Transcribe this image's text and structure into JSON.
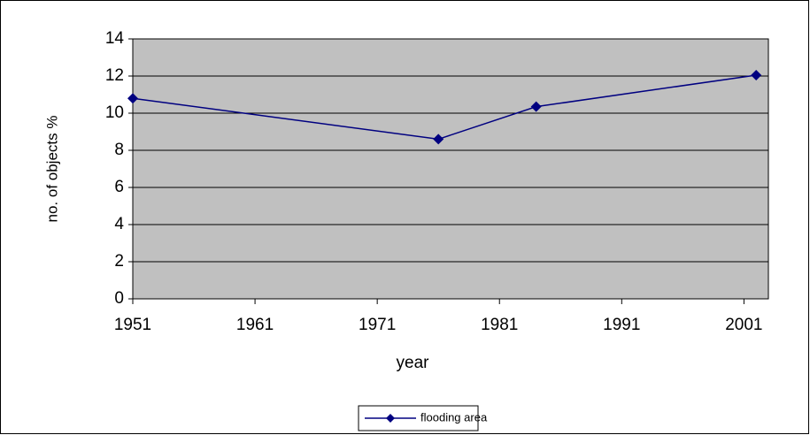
{
  "chart_data": {
    "type": "line",
    "x_label": "year",
    "y_label": "no. of objects %",
    "series": [
      {
        "name": "flooding area",
        "color": "#000080",
        "x": [
          1951,
          1976,
          1984,
          2002
        ],
        "values": [
          10.8,
          8.6,
          10.35,
          12.05
        ]
      }
    ],
    "xlim": [
      1951,
      2003
    ],
    "xticks": [
      1951,
      1961,
      1971,
      1981,
      1991,
      2001
    ],
    "ylim": [
      0,
      14
    ],
    "yticks": [
      0,
      2,
      4,
      6,
      8,
      10,
      12,
      14
    ],
    "grid": true,
    "legend": "bottom",
    "plot_background": "#c0c0c0"
  }
}
